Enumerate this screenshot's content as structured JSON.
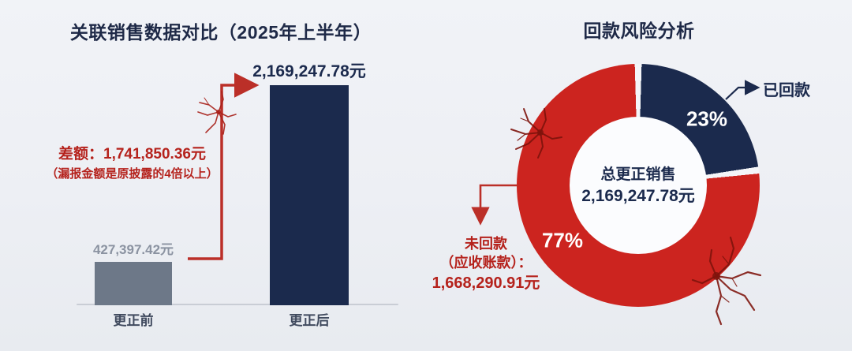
{
  "chart_data": [
    {
      "type": "bar",
      "title": "关联销售数据对比（2025年上半年）",
      "categories": [
        "更正前",
        "更正后"
      ],
      "values": [
        427397.42,
        2169247.78
      ],
      "value_labels": [
        "427,397.42元",
        "2,169,247.78元"
      ],
      "bar_colors": [
        "#6d7888",
        "#1b2a4d"
      ],
      "annotations": [
        "差额：1,741,850.36元",
        "（漏报金额是原披露的4倍以上）"
      ],
      "annotation_color": "#b5221c",
      "arrow_color": "#bb2f28",
      "unit": "元",
      "ylim": [
        0,
        2300000
      ],
      "grid": false
    },
    {
      "type": "pie",
      "donut": true,
      "title": "回款风险分析",
      "labels": [
        "已回款",
        "未回款（应收账款）"
      ],
      "values": [
        23,
        77
      ],
      "slice_labels": [
        "23%",
        "77%"
      ],
      "colors": [
        "#1b2a4d",
        "#cc241f"
      ],
      "center_lines": [
        "总更正销售",
        "2,169,247.78元"
      ],
      "callout_collected": "已回款",
      "callout_uncollected": [
        "未回款",
        "（应收账款）：",
        "1,668,290.91元"
      ],
      "uncollected_amount": 1668290.91,
      "legend_position": "none"
    }
  ]
}
